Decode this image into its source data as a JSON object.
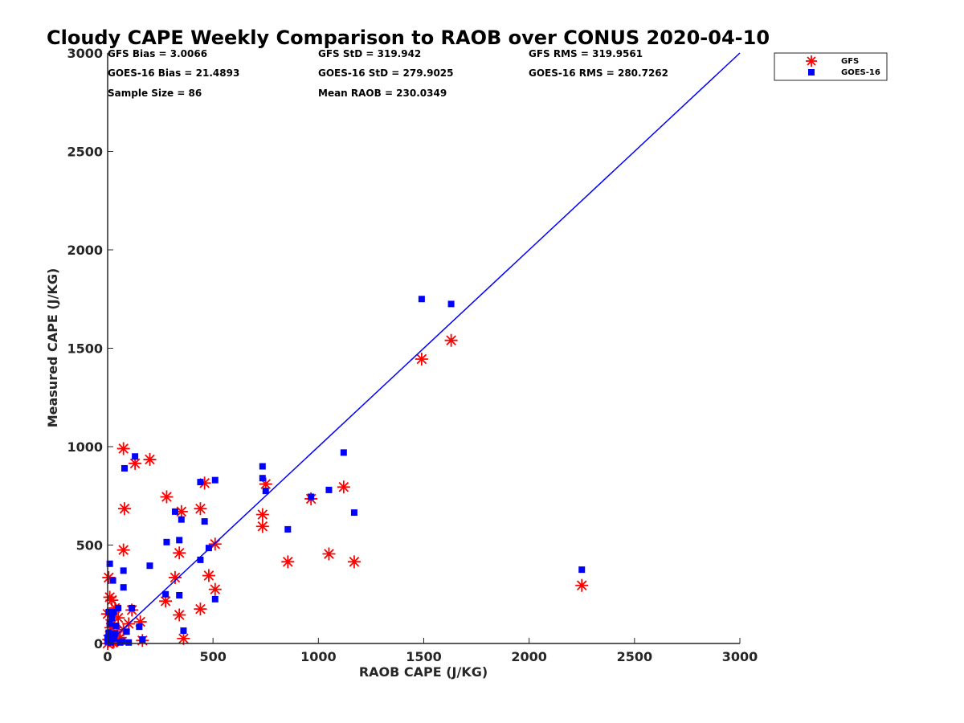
{
  "chart_data": {
    "type": "scatter",
    "title": "Cloudy CAPE Weekly Comparison to RAOB over CONUS 2020-04-10",
    "xlabel": "RAOB CAPE (J/KG)",
    "ylabel": "Measured CAPE (J/KG)",
    "xlim": [
      0,
      3000
    ],
    "ylim": [
      0,
      3000
    ],
    "xticks": [
      "0",
      "500",
      "1000",
      "1500",
      "2000",
      "2500",
      "3000"
    ],
    "yticks": [
      "0",
      "500",
      "1000",
      "1500",
      "2000",
      "2500",
      "3000"
    ],
    "grid": false,
    "legend_position": "top-right",
    "stats": [
      [
        "GFS Bias = 3.0066",
        "GFS StD = 319.942",
        "GFS RMS = 319.9561"
      ],
      [
        "GOES-16 Bias = 21.4893",
        "GOES-16 StD = 279.9025",
        "GOES-16 RMS = 280.7262"
      ],
      [
        "Sample Size = 86",
        "Mean RAOB = 230.0349",
        ""
      ]
    ],
    "one_to_one_line": [
      [
        0,
        0
      ],
      [
        3000,
        3000
      ]
    ],
    "line_color": "#0000ff",
    "series": [
      {
        "name": "GFS",
        "marker": "asterisk",
        "color": "#ff0000",
        "points": [
          [
            2250,
            295
          ],
          [
            1630,
            1540
          ],
          [
            1490,
            1445
          ],
          [
            1170,
            415
          ],
          [
            1120,
            795
          ],
          [
            1050,
            455
          ],
          [
            965,
            735
          ],
          [
            855,
            415
          ],
          [
            750,
            810
          ],
          [
            735,
            655
          ],
          [
            735,
            595
          ],
          [
            510,
            505
          ],
          [
            510,
            275
          ],
          [
            480,
            345
          ],
          [
            460,
            815
          ],
          [
            440,
            685
          ],
          [
            440,
            175
          ],
          [
            360,
            25
          ],
          [
            350,
            670
          ],
          [
            340,
            460
          ],
          [
            340,
            145
          ],
          [
            320,
            335
          ],
          [
            280,
            745
          ],
          [
            275,
            215
          ],
          [
            200,
            935
          ],
          [
            165,
            15
          ],
          [
            155,
            110
          ],
          [
            130,
            915
          ],
          [
            115,
            170
          ],
          [
            100,
            100
          ],
          [
            80,
            685
          ],
          [
            75,
            990
          ],
          [
            75,
            475
          ],
          [
            75,
            70
          ],
          [
            60,
            30
          ],
          [
            50,
            130
          ],
          [
            40,
            60
          ],
          [
            35,
            180
          ],
          [
            30,
            10
          ],
          [
            25,
            5
          ],
          [
            20,
            220
          ],
          [
            15,
            80
          ],
          [
            10,
            235
          ],
          [
            5,
            335
          ],
          [
            5,
            20
          ],
          [
            0,
            0
          ],
          [
            0,
            150
          ],
          [
            10,
            40
          ],
          [
            20,
            120
          ],
          [
            45,
            15
          ]
        ]
      },
      {
        "name": "GOES-16",
        "marker": "square",
        "color": "#0000ff",
        "points": [
          [
            2250,
            375
          ],
          [
            1630,
            1725
          ],
          [
            1490,
            1750
          ],
          [
            1170,
            665
          ],
          [
            1120,
            970
          ],
          [
            1050,
            780
          ],
          [
            965,
            745
          ],
          [
            855,
            580
          ],
          [
            750,
            775
          ],
          [
            735,
            900
          ],
          [
            735,
            840
          ],
          [
            510,
            830
          ],
          [
            510,
            225
          ],
          [
            480,
            485
          ],
          [
            460,
            620
          ],
          [
            440,
            820
          ],
          [
            440,
            425
          ],
          [
            360,
            65
          ],
          [
            350,
            630
          ],
          [
            340,
            525
          ],
          [
            340,
            245
          ],
          [
            320,
            670
          ],
          [
            280,
            515
          ],
          [
            275,
            250
          ],
          [
            200,
            395
          ],
          [
            165,
            20
          ],
          [
            150,
            85
          ],
          [
            130,
            950
          ],
          [
            115,
            180
          ],
          [
            100,
            5
          ],
          [
            80,
            890
          ],
          [
            75,
            370
          ],
          [
            75,
            285
          ],
          [
            70,
            10
          ],
          [
            50,
            180
          ],
          [
            40,
            90
          ],
          [
            35,
            50
          ],
          [
            30,
            160
          ],
          [
            25,
            320
          ],
          [
            20,
            130
          ],
          [
            10,
            405
          ],
          [
            10,
            100
          ],
          [
            5,
            160
          ],
          [
            5,
            55
          ],
          [
            0,
            10
          ],
          [
            0,
            30
          ],
          [
            15,
            5
          ],
          [
            30,
            25
          ],
          [
            60,
            5
          ],
          [
            90,
            60
          ]
        ]
      }
    ]
  }
}
